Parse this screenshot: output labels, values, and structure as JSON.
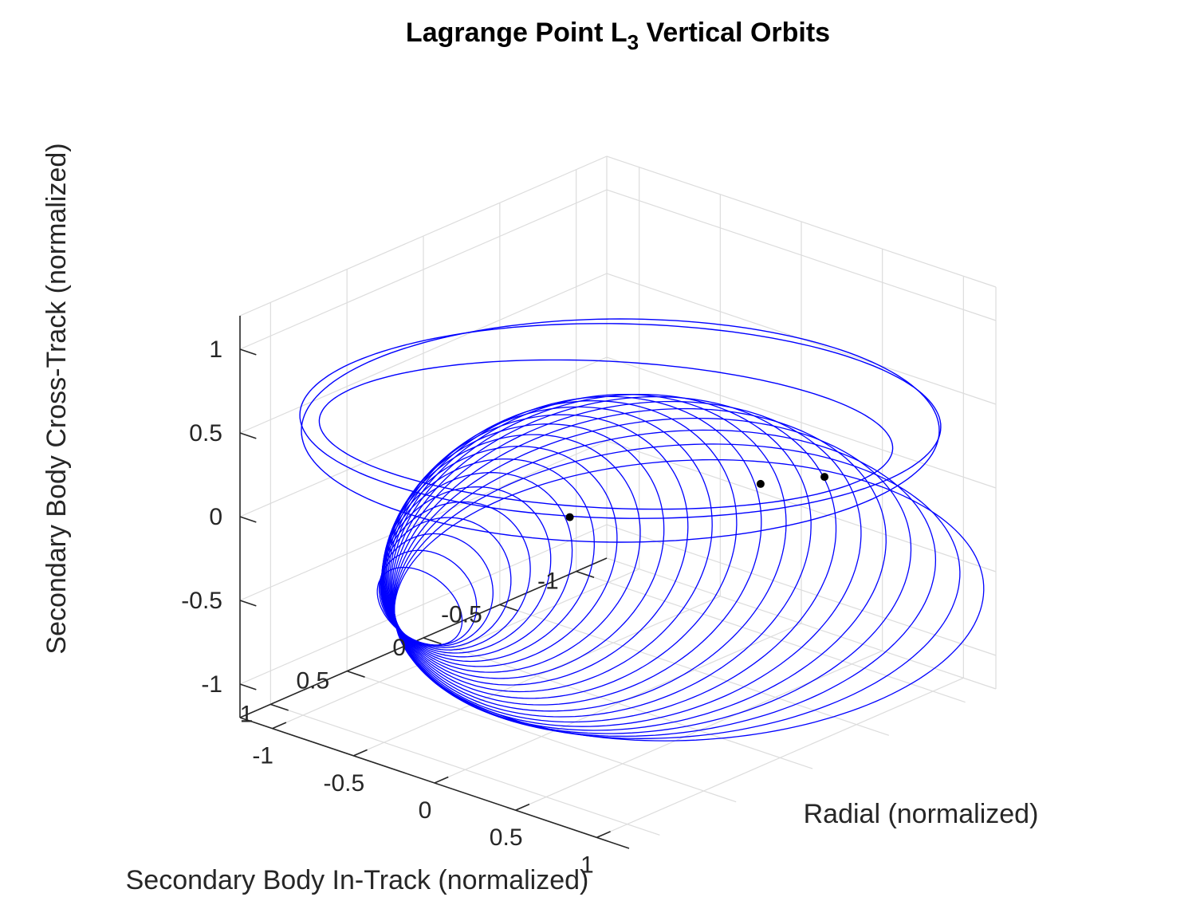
{
  "chart_data": {
    "type": "line3d",
    "title_main": "Lagrange Point L",
    "title_sub": "3",
    "title_rest": " Vertical Orbits",
    "xlabel": "Radial (normalized)",
    "ylabel": "Secondary Body In-Track (normalized)",
    "zlabel": "Secondary Body Cross-Track (normalized)",
    "xlim": [
      -1.2,
      1.2
    ],
    "ylim": [
      -1.2,
      1.2
    ],
    "zlim": [
      -1.2,
      1.2
    ],
    "xticks": [
      "-1",
      "-0.5",
      "0",
      "0.5",
      "1"
    ],
    "yticks": [
      "1",
      "0.5",
      "0",
      "-0.5",
      "-1"
    ],
    "zticks": [
      "1",
      "0.5",
      "0",
      "-0.5",
      "-1"
    ],
    "grid": true,
    "series_color": "#0000ff",
    "orbit_family": {
      "count": 24,
      "pivot": [
        -0.4,
        1.0,
        -0.5
      ],
      "description_values": "tilted elliptical orbits sharing a common point, sweeping from in-plane to near-vertical"
    },
    "markers": [
      {
        "x": -0.25,
        "y": 0.05,
        "z": -0.15
      },
      {
        "x": 0.55,
        "y": -0.35,
        "z": 0.15
      },
      {
        "x": 0.85,
        "y": -0.45,
        "z": 0.25
      }
    ],
    "marker_color": "#000000"
  }
}
